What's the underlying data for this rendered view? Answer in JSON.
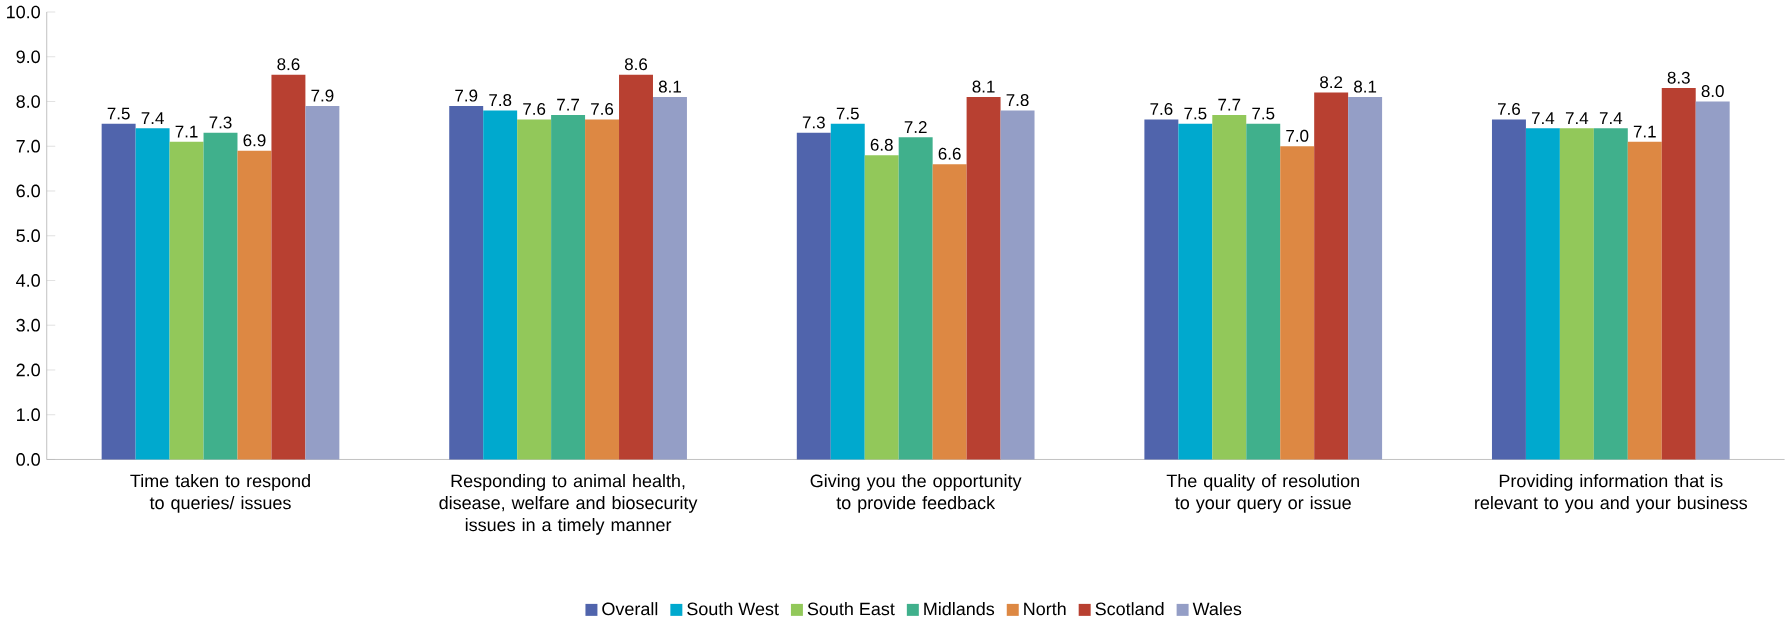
{
  "chart_data": {
    "type": "bar",
    "categories": [
      "Time taken to respond to queries/ issues",
      "Responding to animal health, disease, welfare and biosecurity issues in a timely manner",
      "Giving you the opportunity to provide feedback",
      "The quality of resolution to your query or issue",
      "Providing information that is relevant to you and your business"
    ],
    "series": [
      {
        "name": "Overall",
        "color": "#5064ac",
        "values": [
          7.5,
          7.9,
          7.3,
          7.6,
          7.6
        ],
        "value_labels": [
          "7.5",
          "7.9",
          "7.3",
          "7.6",
          "7.6"
        ]
      },
      {
        "name": "South West",
        "color": "#00a9ce",
        "values": [
          7.4,
          7.8,
          7.5,
          7.5,
          7.4
        ],
        "value_labels": [
          "7.4",
          "7.8",
          "7.5",
          "7.5",
          "7.4"
        ]
      },
      {
        "name": "South East",
        "color": "#92c85a",
        "values": [
          7.1,
          7.6,
          6.8,
          7.7,
          7.4
        ],
        "value_labels": [
          "7.1",
          "7.6",
          "6.8",
          "7.7",
          "7.4"
        ]
      },
      {
        "name": "Midlands",
        "color": "#40b08c",
        "values": [
          7.3,
          7.7,
          7.2,
          7.5,
          7.4
        ],
        "value_labels": [
          "7.3",
          "7.7",
          "7.2",
          "7.5",
          "7.4"
        ]
      },
      {
        "name": "North",
        "color": "#dd8843",
        "values": [
          6.9,
          7.6,
          6.6,
          7.0,
          7.1
        ],
        "value_labels": [
          "6.9",
          "7.6",
          "6.6",
          "7.0",
          "7.1"
        ]
      },
      {
        "name": "Scotland",
        "color": "#b84031",
        "values": [
          8.6,
          8.6,
          8.1,
          8.2,
          8.3
        ],
        "value_labels": [
          "8.6",
          "8.6",
          "8.1",
          "8.2",
          "8.3"
        ]
      },
      {
        "name": "Wales",
        "color": "#949ec6",
        "values": [
          7.9,
          8.1,
          7.8,
          8.1,
          8.0
        ],
        "value_labels": [
          "7.9",
          "8.1",
          "7.8",
          "8.1",
          "8.0"
        ]
      }
    ],
    "ylim": [
      0,
      10
    ],
    "yticks": [
      {
        "value": 0,
        "label": "0.0"
      },
      {
        "value": 1,
        "label": "1.0"
      },
      {
        "value": 2,
        "label": "2.0"
      },
      {
        "value": 3,
        "label": "3.0"
      },
      {
        "value": 4,
        "label": "4.0"
      },
      {
        "value": 5,
        "label": "5.0"
      },
      {
        "value": 6,
        "label": "6.0"
      },
      {
        "value": 7,
        "label": "7.0"
      },
      {
        "value": 8,
        "label": "8.0"
      },
      {
        "value": 9,
        "label": "9.0"
      },
      {
        "value": 10,
        "label": "10.0"
      }
    ],
    "grid": false,
    "legend": "bottom"
  }
}
